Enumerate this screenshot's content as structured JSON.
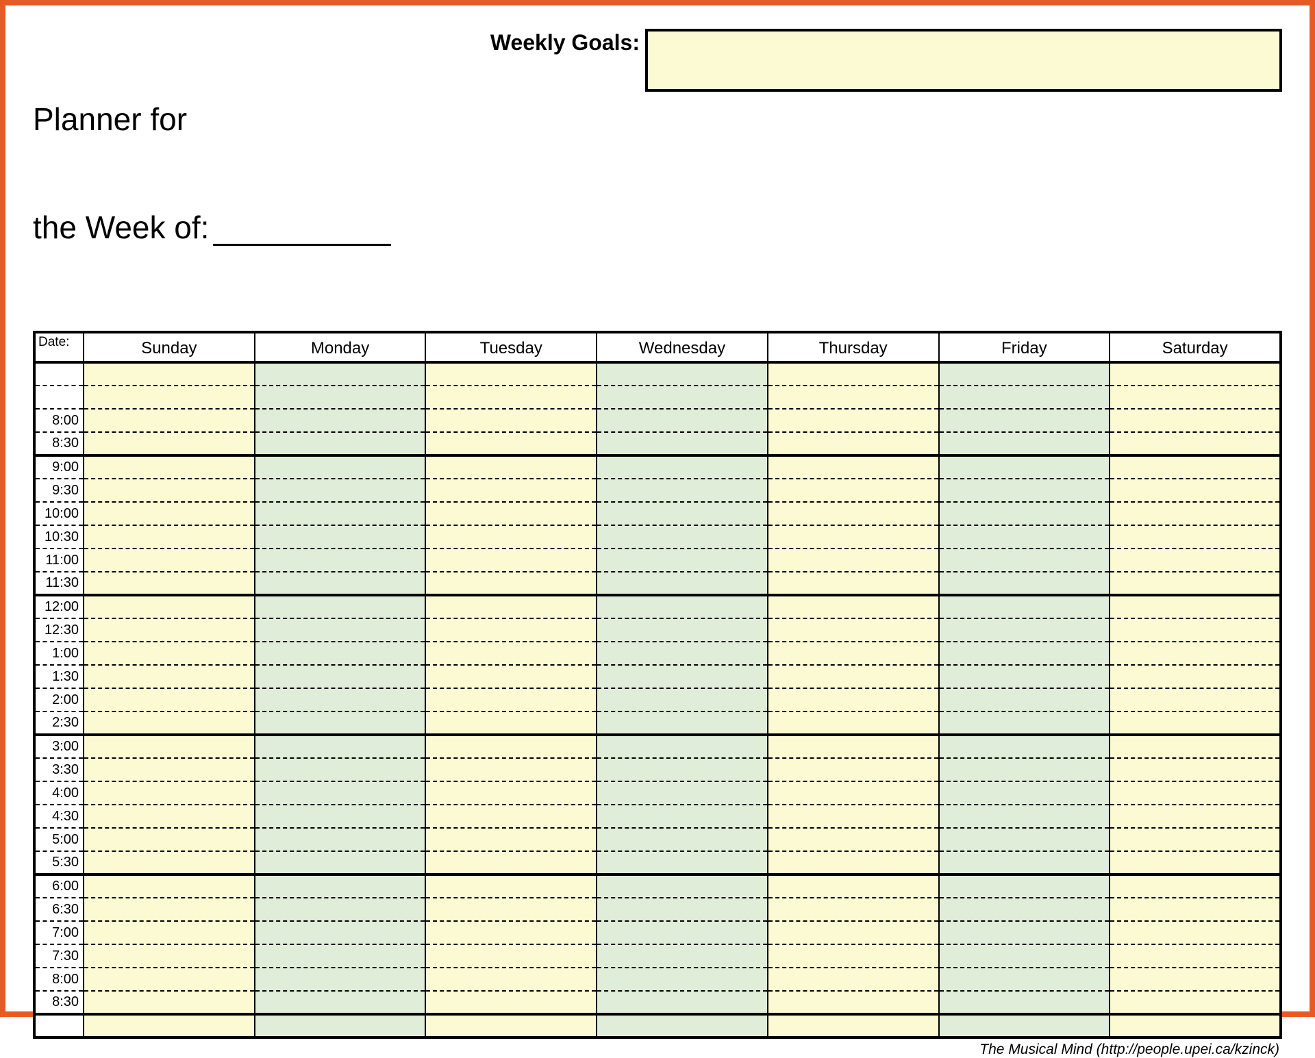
{
  "frame_color": "#e85a24",
  "colors": {
    "cream": "#fbfad2",
    "sage": "#e0edd8",
    "border": "#000000",
    "background": "#ffffff"
  },
  "title": {
    "line1": "Planner for",
    "line2_prefix": "the Week of:"
  },
  "goals": {
    "label": "Weekly Goals:"
  },
  "table": {
    "date_label": "Date:",
    "days": [
      "Sunday",
      "Monday",
      "Tuesday",
      "Wednesday",
      "Thursday",
      "Friday",
      "Saturday"
    ],
    "day_shade": [
      "cream",
      "sage",
      "cream",
      "sage",
      "cream",
      "sage",
      "cream"
    ],
    "time_slots": [
      {
        "label": "",
        "sep": "dashed"
      },
      {
        "label": "",
        "sep": "dashed"
      },
      {
        "label": "8:00",
        "sep": "dashed"
      },
      {
        "label": "8:30",
        "sep": "block"
      },
      {
        "label": "9:00",
        "sep": "dashed"
      },
      {
        "label": "9:30",
        "sep": "dashed"
      },
      {
        "label": "10:00",
        "sep": "dashed"
      },
      {
        "label": "10:30",
        "sep": "dashed"
      },
      {
        "label": "11:00",
        "sep": "dashed"
      },
      {
        "label": "11:30",
        "sep": "block"
      },
      {
        "label": "12:00",
        "sep": "dashed"
      },
      {
        "label": "12:30",
        "sep": "dashed"
      },
      {
        "label": "1:00",
        "sep": "dashed"
      },
      {
        "label": "1:30",
        "sep": "dashed"
      },
      {
        "label": "2:00",
        "sep": "dashed"
      },
      {
        "label": "2:30",
        "sep": "block"
      },
      {
        "label": "3:00",
        "sep": "dashed"
      },
      {
        "label": "3:30",
        "sep": "dashed"
      },
      {
        "label": "4:00",
        "sep": "dashed"
      },
      {
        "label": "4:30",
        "sep": "dashed"
      },
      {
        "label": "5:00",
        "sep": "dashed"
      },
      {
        "label": "5:30",
        "sep": "block"
      },
      {
        "label": "6:00",
        "sep": "dashed"
      },
      {
        "label": "6:30",
        "sep": "dashed"
      },
      {
        "label": "7:00",
        "sep": "dashed"
      },
      {
        "label": "7:30",
        "sep": "dashed"
      },
      {
        "label": "8:00",
        "sep": "dashed"
      },
      {
        "label": "8:30",
        "sep": "block"
      },
      {
        "label": "",
        "sep": "final"
      }
    ]
  },
  "footer": "The Musical Mind   (http://people.upei.ca/kzinck)"
}
